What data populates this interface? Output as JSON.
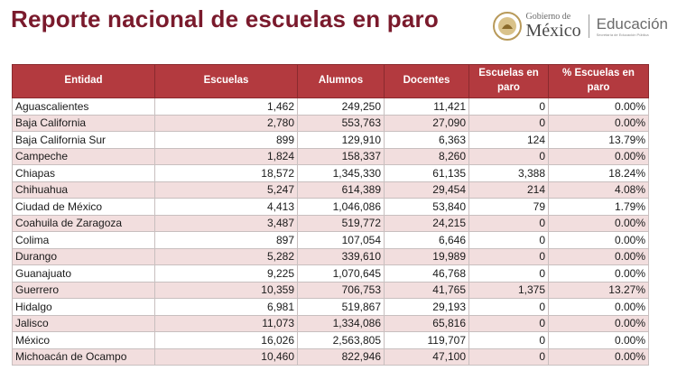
{
  "title": "Reporte nacional de escuelas en paro",
  "logo": {
    "gobierno_small": "Gobierno de",
    "gobierno_big": "México",
    "educacion_big": "Educación",
    "educacion_small": "Secretaría de Educación Pública"
  },
  "colors": {
    "title": "#7a1a2c",
    "header_bg": "#b33a3f",
    "row_alt": "#f2dede"
  },
  "table": {
    "headers": [
      "Entidad",
      "Escuelas",
      "Alumnos",
      "Docentes",
      "Escuelas en paro",
      "% Escuelas en paro"
    ],
    "rows": [
      [
        "Aguascalientes",
        "1,462",
        "249,250",
        "11,421",
        "0",
        "0.00%"
      ],
      [
        "Baja California",
        "2,780",
        "553,763",
        "27,090",
        "0",
        "0.00%"
      ],
      [
        "Baja California Sur",
        "899",
        "129,910",
        "6,363",
        "124",
        "13.79%"
      ],
      [
        "Campeche",
        "1,824",
        "158,337",
        "8,260",
        "0",
        "0.00%"
      ],
      [
        "Chiapas",
        "18,572",
        "1,345,330",
        "61,135",
        "3,388",
        "18.24%"
      ],
      [
        "Chihuahua",
        "5,247",
        "614,389",
        "29,454",
        "214",
        "4.08%"
      ],
      [
        "Ciudad de México",
        "4,413",
        "1,046,086",
        "53,840",
        "79",
        "1.79%"
      ],
      [
        "Coahuila de Zaragoza",
        "3,487",
        "519,772",
        "24,215",
        "0",
        "0.00%"
      ],
      [
        "Colima",
        "897",
        "107,054",
        "6,646",
        "0",
        "0.00%"
      ],
      [
        "Durango",
        "5,282",
        "339,610",
        "19,989",
        "0",
        "0.00%"
      ],
      [
        "Guanajuato",
        "9,225",
        "1,070,645",
        "46,768",
        "0",
        "0.00%"
      ],
      [
        "Guerrero",
        "10,359",
        "706,753",
        "41,765",
        "1,375",
        "13.27%"
      ],
      [
        "Hidalgo",
        "6,981",
        "519,867",
        "29,193",
        "0",
        "0.00%"
      ],
      [
        "Jalisco",
        "11,073",
        "1,334,086",
        "65,816",
        "0",
        "0.00%"
      ],
      [
        "México",
        "16,026",
        "2,563,805",
        "119,707",
        "0",
        "0.00%"
      ],
      [
        "Michoacán de Ocampo",
        "10,460",
        "822,946",
        "47,100",
        "0",
        "0.00%"
      ]
    ]
  }
}
